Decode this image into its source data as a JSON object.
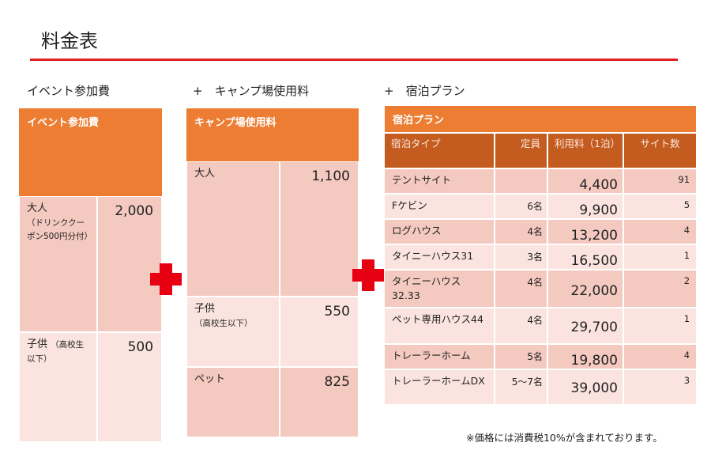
{
  "page": {
    "title": "料金表",
    "note": "※価格には消費税10%が含まれております。"
  },
  "sections": {
    "event_label": "イベント参加費",
    "camp_label": "+　キャンプ場使用料",
    "lodging_label": "+　宿泊プラン"
  },
  "event_table": {
    "header": "イベント参加費",
    "rows": [
      {
        "label": "大人",
        "sub": "（ドリンククーポン500円分付）",
        "price": "2,000"
      },
      {
        "label": "子供",
        "sub": "（高校生以下）",
        "price": "500"
      }
    ]
  },
  "camp_table": {
    "header": "キャンプ場使用料",
    "rows": [
      {
        "label": "大人",
        "sub": "",
        "price": "1,100"
      },
      {
        "label": "子供",
        "sub": "（高校生以下）",
        "price": "550"
      },
      {
        "label": "ペット",
        "sub": "",
        "price": "825"
      }
    ]
  },
  "lodging_table": {
    "header": "宿泊プラン",
    "columns": [
      "宿泊タイプ",
      "定員",
      "利用料（1泊）",
      "サイト数"
    ],
    "rows": [
      {
        "type": "テントサイト",
        "capacity": "",
        "price": "4,400",
        "sites": "91"
      },
      {
        "type": "Fケビン",
        "capacity": "6名",
        "price": "9,900",
        "sites": "5"
      },
      {
        "type": "ログハウス",
        "capacity": "4名",
        "price": "13,200",
        "sites": "4"
      },
      {
        "type": "タイニーハウス31",
        "capacity": "3名",
        "price": "16,500",
        "sites": "1"
      },
      {
        "type": "タイニーハウス32.33",
        "capacity": "4名",
        "price": "22,000",
        "sites": "2"
      },
      {
        "type": "ペット専用ハウス44",
        "capacity": "4名",
        "price": "29,700",
        "sites": "1"
      },
      {
        "type": "トレーラーホーム",
        "capacity": "5名",
        "price": "19,800",
        "sites": "4"
      },
      {
        "type": "トレーラーホームDX",
        "capacity": "5〜7名",
        "price": "39,000",
        "sites": "3"
      }
    ]
  },
  "colors": {
    "header_orange": "#ec7d32",
    "column_header": "#c45b1f",
    "row_dark": "#f4c9c0",
    "row_light": "#fbe4df",
    "accent_red": "#e0201f"
  }
}
